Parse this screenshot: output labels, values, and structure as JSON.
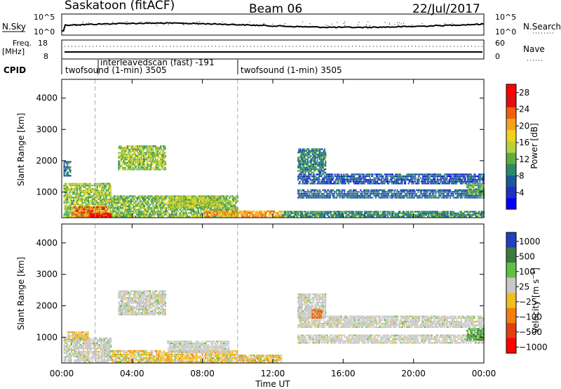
{
  "header": {
    "station": "Saskatoon (fitACF)",
    "beam": "Beam 06",
    "date": "22/Jul/2017"
  },
  "noise_panel": {
    "left_label": "N.Sky",
    "right_label": "N.Search",
    "left_ticks": [
      "10^5",
      "10^0"
    ],
    "right_ticks": [
      "10^5",
      "10^0"
    ]
  },
  "freq_panel": {
    "left_label_top": "Freq.",
    "left_label_bottom": "[MHz]",
    "right_label": "Nave",
    "left_ticks": [
      "18",
      "8"
    ],
    "right_ticks": [
      "60",
      "0"
    ]
  },
  "cpid": {
    "label": "CPID",
    "modes": [
      {
        "start_hour": 0,
        "end_hour": 1.9,
        "text": "twofsound (1-min) 3505"
      },
      {
        "start_hour": 1.9,
        "end_hour": 10.0,
        "text": "interleavedscan (fast) -191"
      },
      {
        "start_hour": 10.0,
        "end_hour": 24,
        "text": "twofsound (1-min) 3505"
      }
    ]
  },
  "chart_data": [
    {
      "type": "heatmap",
      "panel": "power",
      "ylabel": "Slant Range [km]",
      "xlabel": "",
      "x_ticks": [
        "00:00",
        "04:00",
        "08:00",
        "12:00",
        "16:00",
        "20:00",
        "00:00"
      ],
      "y_ticks": [
        1000,
        2000,
        3000,
        4000
      ],
      "ylim": [
        180,
        4600
      ],
      "xlim_hours": [
        0,
        24
      ],
      "mode_change_markers_hours": [
        1.9,
        10.0
      ],
      "colorbar": {
        "label": "Power [dB]",
        "ticks": [
          4,
          8,
          12,
          16,
          20,
          24,
          28
        ],
        "range": [
          0,
          30
        ],
        "colors": [
          "#0000ff",
          "#2030c0",
          "#1a5a9a",
          "#2a8a6a",
          "#5fae3a",
          "#b8d23a",
          "#f0d020",
          "#f7a020",
          "#f06010",
          "#e01010",
          "#ff0000"
        ]
      },
      "regions": [
        {
          "t0": 0.1,
          "t1": 2.8,
          "r0": 200,
          "r1": 1300,
          "level": 14
        },
        {
          "t0": 0.6,
          "t1": 2.6,
          "r0": 200,
          "r1": 550,
          "level": 22
        },
        {
          "t0": 1.6,
          "t1": 2.8,
          "r0": 180,
          "r1": 330,
          "level": 28
        },
        {
          "t0": 0.1,
          "t1": 0.5,
          "r0": 1500,
          "r1": 2000,
          "level": 8
        },
        {
          "t0": 3.2,
          "t1": 5.9,
          "r0": 1700,
          "r1": 2500,
          "level": 14
        },
        {
          "t0": 2.8,
          "t1": 10.0,
          "r0": 200,
          "r1": 900,
          "level": 13
        },
        {
          "t0": 6.0,
          "t1": 8.8,
          "r0": 500,
          "r1": 900,
          "level": 15
        },
        {
          "t0": 8.0,
          "t1": 12.5,
          "r0": 200,
          "r1": 420,
          "level": 20
        },
        {
          "t0": 12.5,
          "t1": 24,
          "r0": 200,
          "r1": 400,
          "level": 10
        },
        {
          "t0": 13.4,
          "t1": 24,
          "r0": 800,
          "r1": 1100,
          "level": 7
        },
        {
          "t0": 13.4,
          "t1": 24,
          "r0": 1250,
          "r1": 1600,
          "level": 6
        },
        {
          "t0": 13.4,
          "t1": 15.0,
          "r0": 1600,
          "r1": 2400,
          "level": 9
        },
        {
          "t0": 23.0,
          "t1": 24,
          "r0": 900,
          "r1": 1300,
          "level": 12
        }
      ]
    },
    {
      "type": "heatmap",
      "panel": "velocity",
      "ylabel": "Slant Range [km]",
      "xlabel": "Time UT",
      "x_ticks": [
        "00:00",
        "04:00",
        "08:00",
        "12:00",
        "16:00",
        "20:00",
        "00:00"
      ],
      "y_ticks": [
        1000,
        2000,
        3000,
        4000
      ],
      "ylim": [
        180,
        4600
      ],
      "xlim_hours": [
        0,
        24
      ],
      "mode_change_markers_hours": [
        1.9,
        10.0
      ],
      "colorbar": {
        "label": "Velocity [m s^-1]",
        "ticks": [
          1000,
          500,
          100,
          25,
          -25,
          -100,
          -500,
          -1000
        ],
        "colors": [
          "#2040c0",
          "#3a7a40",
          "#60c040",
          "#c8c8c8",
          "#f0c020",
          "#f08010",
          "#e04010",
          "#ff0000"
        ]
      },
      "regions": [
        {
          "t0": 0.1,
          "t1": 2.8,
          "r0": 200,
          "r1": 1000,
          "class": "ground"
        },
        {
          "t0": 0.3,
          "t1": 1.5,
          "r0": 900,
          "r1": 1200,
          "class": "slow-neg"
        },
        {
          "t0": 3.2,
          "t1": 5.9,
          "r0": 1700,
          "r1": 2500,
          "class": "ground"
        },
        {
          "t0": 2.8,
          "t1": 10.0,
          "r0": 200,
          "r1": 600,
          "class": "slow-neg"
        },
        {
          "t0": 6.0,
          "t1": 9.5,
          "r0": 500,
          "r1": 900,
          "class": "ground"
        },
        {
          "t0": 10.0,
          "t1": 12.5,
          "r0": 200,
          "r1": 450,
          "class": "slow-neg"
        },
        {
          "t0": 13.4,
          "t1": 24,
          "r0": 800,
          "r1": 1100,
          "class": "ground"
        },
        {
          "t0": 13.4,
          "t1": 24,
          "r0": 1300,
          "r1": 1700,
          "class": "ground"
        },
        {
          "t0": 13.4,
          "t1": 15.0,
          "r0": 1600,
          "r1": 2400,
          "class": "ground"
        },
        {
          "t0": 14.2,
          "t1": 14.8,
          "r0": 1600,
          "r1": 1900,
          "class": "mid-neg"
        },
        {
          "t0": 23.0,
          "t1": 24,
          "r0": 900,
          "r1": 1300,
          "class": "pos"
        }
      ]
    }
  ]
}
